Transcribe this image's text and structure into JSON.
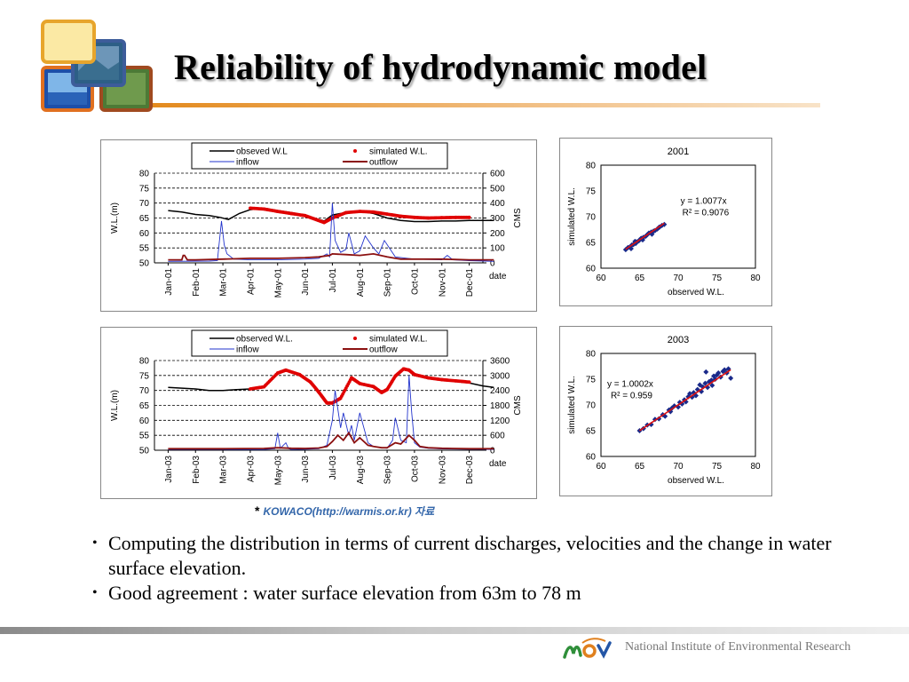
{
  "slide": {
    "title": "Reliability of hydrodynamic model",
    "credit": "KOWACO(http://warmis.or.kr) 자료",
    "credit_mark": "*",
    "bullets": [
      "Computing the distribution in terms of current discharges, velocities and the change in water surface elevation.",
      "Good agreement : water surface elevation from 63m to 78 m"
    ],
    "institute": "National Institute of Environmental Research",
    "logo_icon": "photo-collage-logo",
    "footer_logo_icon": "mev-logo"
  },
  "chart_data": [
    {
      "type": "line",
      "legend": [
        "obseved W.L",
        "simulated W.L.",
        "inflow",
        "outflow"
      ],
      "legend_position": "top",
      "ylabel": "W.L.(m)",
      "y2label": "CMS",
      "xlabel": "date",
      "ylim": [
        50,
        80
      ],
      "yticks": [
        50,
        55,
        60,
        65,
        70,
        75,
        80
      ],
      "y2lim": [
        0,
        600
      ],
      "y2ticks": [
        0,
        100,
        200,
        300,
        400,
        500,
        600
      ],
      "categories": [
        "Jan-01",
        "Feb-01",
        "Mar-01",
        "Apr-01",
        "May-01",
        "Jun-01",
        "Jul-01",
        "Aug-01",
        "Sep-01",
        "Oct-01",
        "Nov-01",
        "Dec-01"
      ],
      "grid": "dashed-horizontal",
      "colors": {
        "observed": "#000000",
        "simulated": "#e00000",
        "inflow": "#2233cc",
        "outflow": "#8b1010"
      },
      "series": [
        {
          "name": "obseved W.L",
          "axis": "left",
          "x": [
            0,
            0.5,
            1,
            1.5,
            1.9,
            2.2,
            2.6,
            3,
            3.5,
            4,
            4.5,
            5,
            5.4,
            5.7,
            6,
            6.5,
            7,
            7.5,
            8,
            8.5,
            9,
            9.5,
            10,
            10.5,
            11,
            11.9
          ],
          "values": [
            67.5,
            67,
            66.2,
            65.8,
            65.2,
            64.5,
            66.5,
            67.8,
            68.3,
            67.5,
            66.8,
            65.5,
            64.8,
            64,
            66,
            66.8,
            67.2,
            66.5,
            65,
            64.2,
            63.8,
            63.8,
            64,
            64,
            64.2,
            64.2
          ]
        },
        {
          "name": "simulated W.L.",
          "axis": "left",
          "x": [
            3,
            3.5,
            4,
            4.5,
            5,
            5.4,
            5.7,
            6,
            6.5,
            7,
            7.5,
            8,
            8.5,
            9,
            9.5,
            10,
            10.5,
            11
          ],
          "values": [
            68.3,
            68,
            67.2,
            66.5,
            65.8,
            64.5,
            63.5,
            65,
            66.8,
            67.2,
            67,
            66.3,
            65.6,
            65.2,
            65,
            65.1,
            65.2,
            65.2
          ]
        },
        {
          "name": "inflow",
          "axis": "right",
          "x": [
            0,
            1.5,
            1.8,
            1.95,
            2.05,
            2.15,
            2.4,
            3,
            4,
            5,
            5.5,
            5.8,
            5.9,
            6,
            6.1,
            6.3,
            6.5,
            6.6,
            6.8,
            7,
            7.2,
            7.5,
            7.7,
            7.9,
            8.3,
            9,
            10,
            10.2,
            10.4,
            11,
            11.9
          ],
          "values": [
            10,
            12,
            15,
            280,
            120,
            60,
            25,
            20,
            20,
            25,
            30,
            60,
            40,
            400,
            150,
            70,
            90,
            200,
            60,
            80,
            180,
            100,
            60,
            150,
            40,
            25,
            20,
            50,
            20,
            15,
            10
          ]
        },
        {
          "name": "outflow",
          "axis": "right",
          "x": [
            0,
            0.5,
            0.55,
            0.6,
            0.7,
            1,
            2,
            3,
            4,
            5,
            5.5,
            5.9,
            6,
            6.5,
            7,
            7.5,
            8,
            8.3,
            8.5,
            9,
            10,
            11,
            11.9
          ],
          "values": [
            20,
            20,
            50,
            50,
            20,
            20,
            25,
            30,
            30,
            35,
            40,
            50,
            60,
            55,
            50,
            60,
            40,
            30,
            25,
            25,
            25,
            20,
            20
          ]
        }
      ]
    },
    {
      "type": "scatter",
      "title": "2001",
      "xlabel": "observed W.L.",
      "ylabel": "simulated W.L.",
      "xlim": [
        60,
        80
      ],
      "ylim": [
        60,
        80
      ],
      "xticks": [
        60,
        65,
        70,
        75,
        80
      ],
      "yticks": [
        60,
        65,
        70,
        75,
        80
      ],
      "equation": "y = 1.0077x",
      "r2": "R² = 0.9076",
      "trendline_slope": 1.0077,
      "colors": {
        "points": "#1a2a8a",
        "trend": "#dd1111"
      },
      "points": [
        [
          63.2,
          63.6
        ],
        [
          63.5,
          64
        ],
        [
          63.8,
          64.2
        ],
        [
          64,
          64.5
        ],
        [
          64.2,
          64.6
        ],
        [
          64.5,
          64.8
        ],
        [
          64.6,
          65.1
        ],
        [
          64.9,
          65.3
        ],
        [
          65,
          65.5
        ],
        [
          65.2,
          65.8
        ],
        [
          65.5,
          66
        ],
        [
          65.8,
          66.2
        ],
        [
          66,
          66.5
        ],
        [
          66.2,
          66.8
        ],
        [
          66.5,
          67
        ],
        [
          66.8,
          67.2
        ],
        [
          67,
          67.3
        ],
        [
          67.3,
          67.6
        ],
        [
          67.6,
          68
        ],
        [
          67.9,
          68.3
        ],
        [
          68.2,
          68.5
        ],
        [
          63.9,
          63.8
        ],
        [
          64.4,
          65.2
        ],
        [
          65.4,
          65.5
        ],
        [
          66.6,
          66.6
        ],
        [
          67.5,
          67.9
        ]
      ]
    },
    {
      "type": "line",
      "legend": [
        "observed W.L.",
        "simulated W.L.",
        "inflow",
        "outflow"
      ],
      "legend_position": "top",
      "ylabel": "W.L.(m)",
      "y2label": "CMS",
      "xlabel": "date",
      "ylim": [
        50,
        80
      ],
      "yticks": [
        50,
        55,
        60,
        65,
        70,
        75,
        80
      ],
      "y2lim": [
        0,
        3600
      ],
      "y2ticks": [
        0,
        600,
        1200,
        1800,
        2400,
        3000,
        3600
      ],
      "categories": [
        "Jan-03",
        "Feb-03",
        "Mar-03",
        "Apr-03",
        "May-03",
        "Jun-03",
        "Jul-03",
        "Aug-03",
        "Sep-03",
        "Oct-03",
        "Nov-03",
        "Dec-03"
      ],
      "grid": "dashed-horizontal",
      "colors": {
        "observed": "#000000",
        "simulated": "#e00000",
        "inflow": "#2233cc",
        "outflow": "#8b1010"
      },
      "series": [
        {
          "name": "observed W.L.",
          "axis": "left",
          "x": [
            0,
            1,
            1.5,
            2,
            2.5,
            3,
            3.5,
            4,
            4.3,
            4.8,
            5.2,
            5.5,
            5.8,
            6,
            6.3,
            6.7,
            7,
            7.5,
            7.8,
            8,
            8.3,
            8.6,
            8.8,
            9,
            9.5,
            10,
            10.5,
            11,
            11.5,
            11.9
          ],
          "values": [
            71,
            70.5,
            70,
            70,
            70.3,
            70.5,
            71,
            75.5,
            76.5,
            75,
            72.5,
            69,
            65.5,
            65.5,
            67,
            74,
            72,
            71,
            69,
            70,
            74.5,
            77,
            76.5,
            75,
            74,
            73.5,
            73,
            72.5,
            71.5,
            71
          ]
        },
        {
          "name": "simulated W.L.",
          "axis": "left",
          "x": [
            3,
            3.5,
            4,
            4.3,
            4.8,
            5.2,
            5.5,
            5.8,
            6,
            6.3,
            6.7,
            7,
            7.5,
            7.8,
            8,
            8.3,
            8.6,
            8.8,
            9,
            9.5,
            10,
            10.5,
            11
          ],
          "values": [
            70.5,
            71.2,
            75.8,
            76.8,
            75.3,
            72.8,
            69.5,
            65.8,
            65.8,
            67.4,
            74.2,
            72.3,
            71.3,
            69.3,
            70.3,
            74.8,
            77.2,
            76.8,
            75.3,
            74.2,
            73.6,
            73.2,
            72.8
          ]
        },
        {
          "name": "inflow",
          "axis": "right",
          "x": [
            0,
            2,
            3.5,
            3.9,
            4,
            4.1,
            4.3,
            4.4,
            4.5,
            5,
            5.5,
            5.8,
            6,
            6.1,
            6.3,
            6.4,
            6.6,
            6.7,
            6.8,
            7,
            7.3,
            7.5,
            7.8,
            8,
            8.2,
            8.3,
            8.5,
            8.7,
            8.8,
            8.9,
            9,
            9.2,
            9.5,
            10,
            11,
            11.9
          ],
          "values": [
            30,
            30,
            30,
            60,
            700,
            80,
            300,
            60,
            30,
            40,
            60,
            200,
            1200,
            2400,
            900,
            1500,
            600,
            1000,
            400,
            1500,
            300,
            150,
            100,
            80,
            400,
            1300,
            400,
            300,
            3000,
            1500,
            300,
            120,
            80,
            50,
            40,
            30
          ]
        },
        {
          "name": "outflow",
          "axis": "right",
          "x": [
            0,
            2,
            3.5,
            4,
            4.5,
            5,
            5.5,
            5.8,
            6,
            6.2,
            6.4,
            6.6,
            6.8,
            7,
            7.3,
            7.5,
            7.8,
            8,
            8.3,
            8.5,
            8.8,
            9,
            9.2,
            9.5,
            10,
            11,
            11.9
          ],
          "values": [
            60,
            60,
            70,
            100,
            80,
            70,
            90,
            150,
            350,
            600,
            400,
            700,
            300,
            500,
            200,
            150,
            100,
            100,
            300,
            250,
            600,
            400,
            150,
            100,
            80,
            60,
            60
          ]
        }
      ]
    },
    {
      "type": "scatter",
      "title": "2003",
      "xlabel": "observed W.L.",
      "ylabel": "simulated W.L.",
      "xlim": [
        60,
        80
      ],
      "ylim": [
        60,
        80
      ],
      "xticks": [
        60,
        65,
        70,
        75,
        80
      ],
      "yticks": [
        60,
        65,
        70,
        75,
        80
      ],
      "equation": "y = 1.0002x",
      "r2": "R² = 0.959",
      "trendline_slope": 1.0002,
      "colors": {
        "points": "#1a2a8a",
        "trend": "#dd1111"
      },
      "points": [
        [
          65,
          65
        ],
        [
          65.5,
          65.4
        ],
        [
          66,
          66.1
        ],
        [
          66.5,
          66.2
        ],
        [
          67,
          67.2
        ],
        [
          67.5,
          67.3
        ],
        [
          68,
          68.1
        ],
        [
          68.3,
          67.8
        ],
        [
          68.8,
          69
        ],
        [
          69,
          68.7
        ],
        [
          69.5,
          69.8
        ],
        [
          70,
          69.6
        ],
        [
          70.2,
          70.5
        ],
        [
          70.8,
          71
        ],
        [
          71,
          70.6
        ],
        [
          71.3,
          71.6
        ],
        [
          71.8,
          71.5
        ],
        [
          72,
          72.4
        ],
        [
          72.3,
          71.8
        ],
        [
          72.5,
          73
        ],
        [
          73,
          72.6
        ],
        [
          73.2,
          73.5
        ],
        [
          73.5,
          74.2
        ],
        [
          73.8,
          73.4
        ],
        [
          74,
          74.5
        ],
        [
          74.3,
          74.8
        ],
        [
          74.6,
          75.6
        ],
        [
          74.8,
          75
        ],
        [
          75,
          75.8
        ],
        [
          75.2,
          76.2
        ],
        [
          75.5,
          75.4
        ],
        [
          75.8,
          76.5
        ],
        [
          76,
          76.8
        ],
        [
          76.3,
          76.2
        ],
        [
          76.5,
          77
        ],
        [
          76.8,
          75.2
        ],
        [
          73.6,
          76.4
        ],
        [
          74.4,
          73.8
        ],
        [
          72.8,
          73.9
        ],
        [
          71.5,
          72.2
        ],
        [
          70.5,
          70.2
        ],
        [
          69.2,
          69.4
        ]
      ]
    }
  ]
}
